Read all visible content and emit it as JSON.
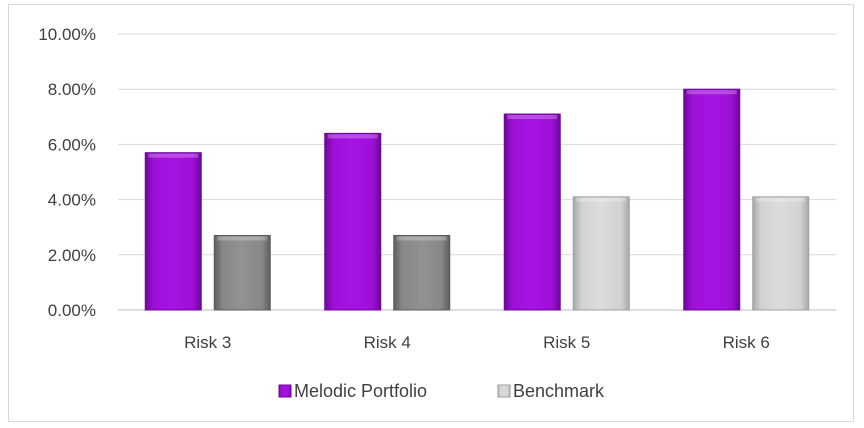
{
  "chart_data": {
    "type": "bar",
    "categories": [
      "Risk 3",
      "Risk 4",
      "Risk 5",
      "Risk 6"
    ],
    "series": [
      {
        "name": "Melodic Portfolio",
        "values": [
          5.7,
          6.4,
          7.1,
          8.0
        ],
        "color": "#9c0ad8"
      },
      {
        "name": "Benchmark",
        "values": [
          2.7,
          2.7,
          4.1,
          4.1
        ],
        "colors": [
          "#8a8a8a",
          "#8a8a8a",
          "#d4d4d4",
          "#d4d4d4"
        ]
      }
    ],
    "y_ticks": [
      "0.00%",
      "2.00%",
      "4.00%",
      "6.00%",
      "8.00%",
      "10.00%"
    ],
    "ylim": [
      0,
      10
    ],
    "grid": true,
    "legend_position": "bottom"
  }
}
